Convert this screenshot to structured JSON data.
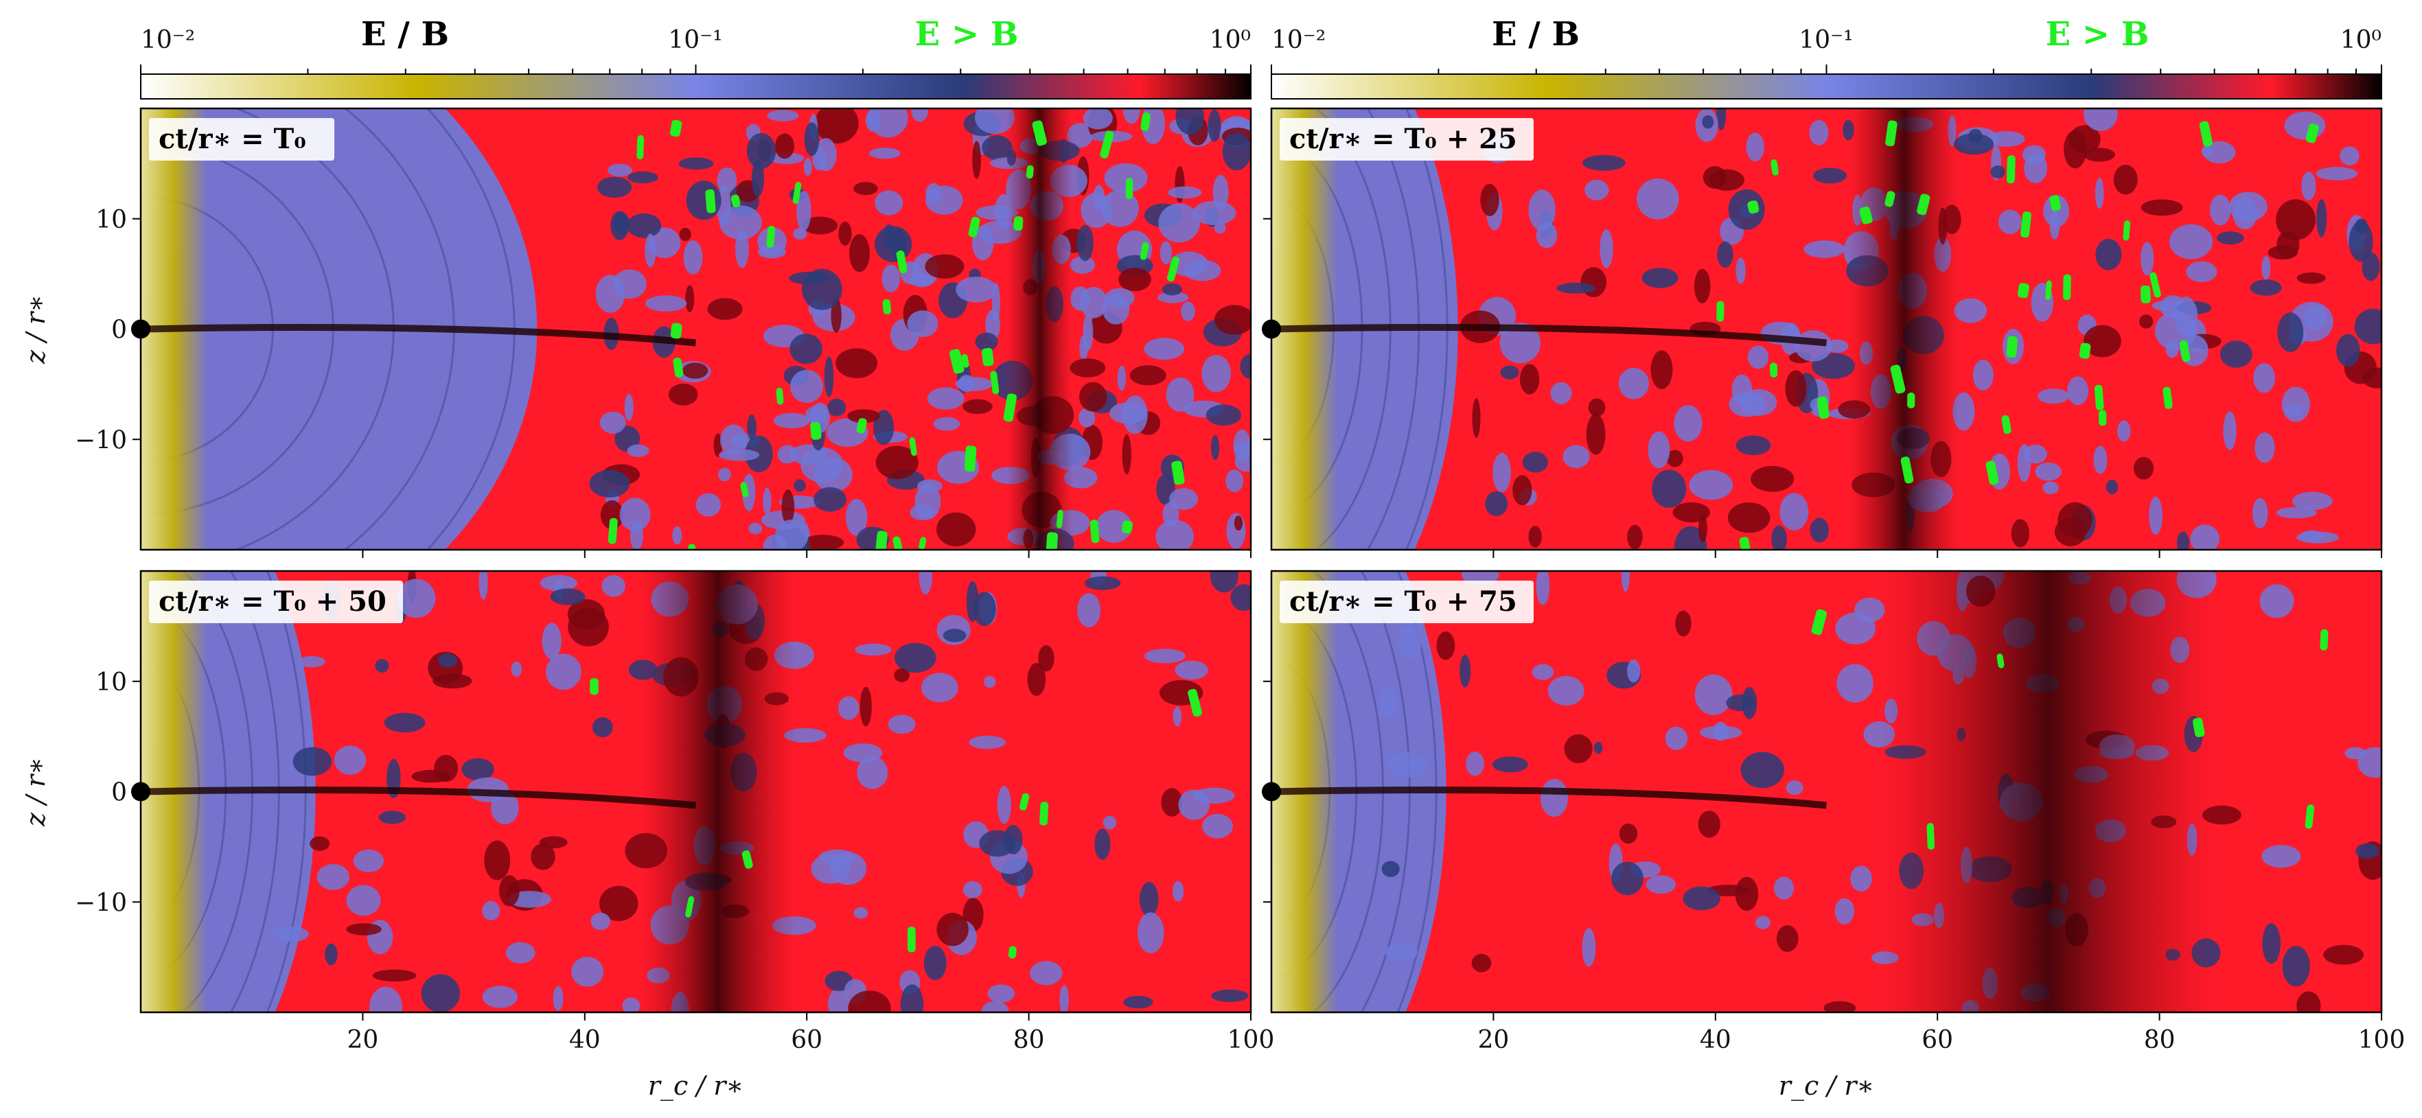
{
  "colorbar": {
    "scale": "log",
    "range": [
      0.01,
      1
    ],
    "tick_labels": [
      "10⁻²",
      "10⁻¹",
      "10⁰"
    ],
    "title": "E / B",
    "marker_label": "E > B",
    "marker_color": "#22ee22",
    "colormap": [
      "#ffffff",
      "#c8b400",
      "#7a84e6",
      "#2a3c7a",
      "#ff1a2a",
      "#000000"
    ]
  },
  "chart_data": [
    {
      "type": "heatmap",
      "panel_label": "ct/r∗ = T₀",
      "xlabel": "",
      "ylabel": "z / r∗",
      "xlim": [
        0,
        100
      ],
      "ylim": [
        -20,
        20
      ],
      "x_ticks": [
        20,
        40,
        60,
        80,
        100
      ],
      "y_ticks": [
        10,
        0,
        -10
      ],
      "x_tick_labels": [],
      "y_tick_labels": [
        "10",
        "0",
        "−10"
      ]
    },
    {
      "type": "heatmap",
      "panel_label": "ct/r∗ = T₀ + 25",
      "xlabel": "",
      "ylabel": "",
      "xlim": [
        0,
        100
      ],
      "ylim": [
        -20,
        20
      ],
      "x_ticks": [
        20,
        40,
        60,
        80,
        100
      ],
      "y_ticks": [
        10,
        0,
        -10
      ],
      "x_tick_labels": [],
      "y_tick_labels": []
    },
    {
      "type": "heatmap",
      "panel_label": "ct/r∗ = T₀ + 50",
      "xlabel": "r_c / r∗",
      "ylabel": "z / r∗",
      "xlim": [
        0,
        100
      ],
      "ylim": [
        -20,
        20
      ],
      "x_ticks": [
        20,
        40,
        60,
        80,
        100
      ],
      "y_ticks": [
        10,
        0,
        -10
      ],
      "x_tick_labels": [
        "20",
        "40",
        "60",
        "80",
        "100"
      ],
      "y_tick_labels": [
        "10",
        "0",
        "−10"
      ]
    },
    {
      "type": "heatmap",
      "panel_label": "ct/r∗ = T₀ + 75",
      "xlabel": "r_c / r∗",
      "ylabel": "",
      "xlim": [
        0,
        100
      ],
      "ylim": [
        -20,
        20
      ],
      "x_ticks": [
        20,
        40,
        60,
        80,
        100
      ],
      "y_ticks": [
        10,
        0,
        -10
      ],
      "x_tick_labels": [
        "20",
        "40",
        "60",
        "80",
        "100"
      ],
      "y_tick_labels": []
    }
  ]
}
